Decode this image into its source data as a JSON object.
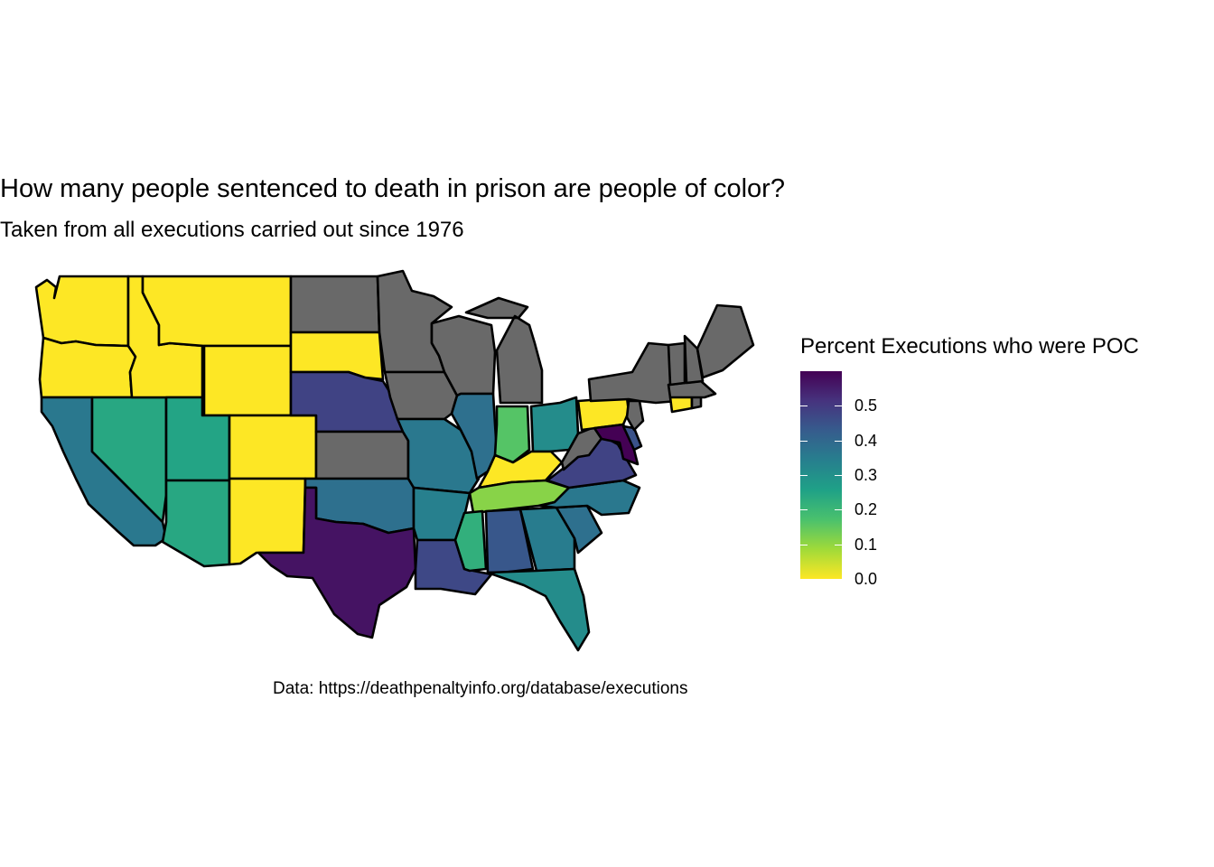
{
  "title": "How many people sentenced to death in prison are people of color?",
  "subtitle": "Taken from all executions carried out since 1976",
  "caption": "Data: https://deathpenaltyinfo.org/database/executions",
  "legend": {
    "title": "Percent Executions who were POC",
    "ticks": [
      "0.5",
      "0.4",
      "0.3",
      "0.2",
      "0.1",
      "0.0"
    ],
    "range": [
      0,
      0.6
    ],
    "colors": [
      "#fde725",
      "#a0da39",
      "#4ac16d",
      "#1fa187",
      "#277f8e",
      "#365c8d",
      "#46337e",
      "#440154"
    ]
  },
  "no_data_color": "#696969",
  "chart_data": {
    "type": "choropleth",
    "value_name": "Percent Executions who were POC",
    "values": {
      "Washington": 0.0,
      "Oregon": 0.0,
      "Idaho": 0.0,
      "Montana": 0.0,
      "Wyoming": 0.0,
      "South Dakota": 0.0,
      "Colorado": 0.0,
      "New Mexico": 0.0,
      "Nevada": 0.24,
      "Utah": 0.25,
      "Arizona": 0.24,
      "California": 0.36,
      "Nebraska": 0.48,
      "Texas": 0.57,
      "Oklahoma": 0.38,
      "Missouri": 0.36,
      "Arkansas": 0.34,
      "Louisiana": 0.47,
      "Mississippi": 0.22,
      "Alabama": 0.44,
      "Georgia": 0.35,
      "Florida": 0.31,
      "South Carolina": 0.38,
      "North Carolina": 0.36,
      "Tennessee": 0.11,
      "Kentucky": 0.0,
      "Indiana": 0.16,
      "Ohio": 0.31,
      "Illinois": 0.38,
      "Virginia": 0.48,
      "Maryland": 0.6,
      "Delaware": 0.45,
      "Pennsylvania": 0.0,
      "Connecticut": 0.0
    },
    "no_data": [
      "North Dakota",
      "Minnesota",
      "Iowa",
      "Wisconsin",
      "Michigan",
      "Kansas",
      "West Virginia",
      "New York",
      "Vermont",
      "New Hampshire",
      "Maine",
      "Massachusetts",
      "Rhode Island",
      "New Jersey"
    ]
  }
}
